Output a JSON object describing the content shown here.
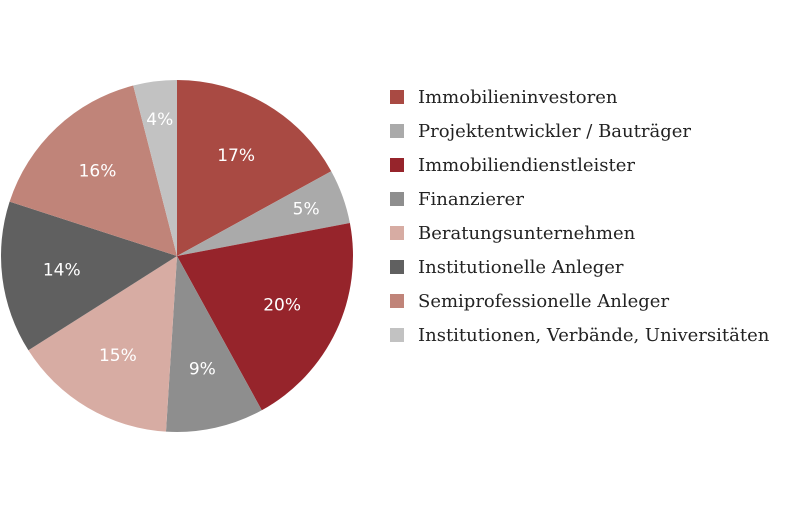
{
  "chart_data": {
    "type": "pie",
    "title": "",
    "legend_position": "right",
    "slices": [
      {
        "name": "Immobilieninvestoren",
        "value": 17,
        "label": "17%",
        "color": "#a94a43"
      },
      {
        "name": "Projektentwickler / Bauträger",
        "value": 5,
        "label": "5%",
        "color": "#aaaaaa"
      },
      {
        "name": "Immobiliendienstleister",
        "value": 20,
        "label": "20%",
        "color": "#96242b"
      },
      {
        "name": "Finanzierer",
        "value": 9,
        "label": "9%",
        "color": "#8e8e8e"
      },
      {
        "name": "Beratungsunternehmen",
        "value": 15,
        "label": "15%",
        "color": "#d7aca3"
      },
      {
        "name": "Institutionelle Anleger",
        "value": 14,
        "label": "14%",
        "color": "#606060"
      },
      {
        "name": "Semiprofessionelle Anleger",
        "value": 16,
        "label": "16%",
        "color": "#c08479"
      },
      {
        "name": "Institutionen, Verbände, Universitäten",
        "value": 4,
        "label": "4%",
        "color": "#c2c2c2"
      }
    ]
  }
}
